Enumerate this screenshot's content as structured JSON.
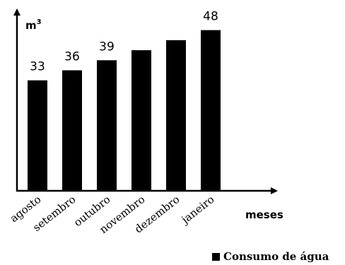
{
  "chart_data": {
    "type": "bar",
    "categories": [
      "agosto",
      "setembro",
      "outubro",
      "novembro",
      "dezembro",
      "janeiro"
    ],
    "values": [
      33,
      36,
      39,
      42,
      45,
      48
    ],
    "data_labels": [
      "33",
      "36",
      "39",
      "",
      "",
      "48"
    ],
    "ylabel": "m",
    "ylabel_superscript": "3",
    "xlabel": "meses",
    "ylim": [
      0,
      57
    ],
    "grid": false,
    "legend": {
      "entries": [
        "Consumo de água"
      ],
      "placement": "bottom-right"
    },
    "colors": {
      "bar": "#000000",
      "axis": "#000000"
    }
  }
}
